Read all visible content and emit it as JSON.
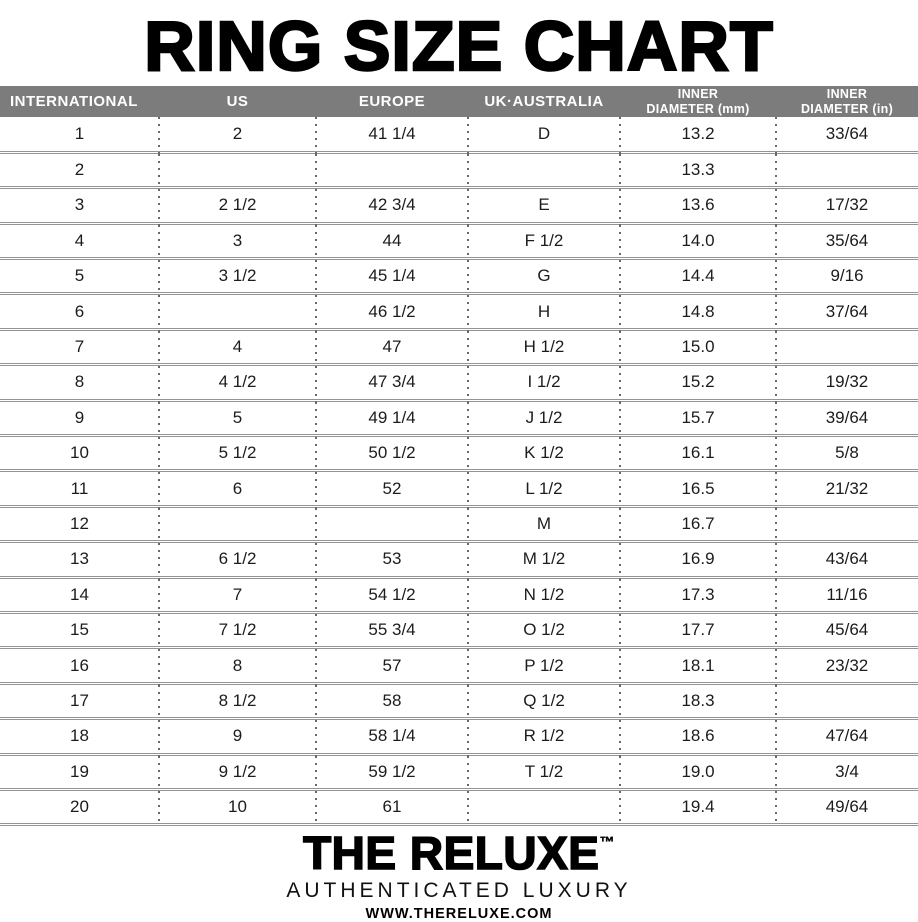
{
  "page": {
    "title": "RING SIZE CHART"
  },
  "table": {
    "column_keys": [
      "international",
      "us",
      "europe",
      "uk_australia",
      "inner_diameter_mm",
      "inner_diameter_in"
    ],
    "columns": {
      "international": {
        "label": "INTERNATIONAL"
      },
      "us": {
        "label": "US"
      },
      "europe": {
        "label": "EUROPE"
      },
      "uk_australia": {
        "label": "UK·AUSTRALIA"
      },
      "inner_diameter_mm": {
        "label_line1": "INNER",
        "label_line2": "DIAMETER (mm)"
      },
      "inner_diameter_in": {
        "label_line1": "INNER",
        "label_line2": "DIAMETER (in)"
      }
    },
    "rows": [
      {
        "international": "1",
        "us": "2",
        "europe": "41 1/4",
        "uk_australia": "D",
        "inner_diameter_mm": "13.2",
        "inner_diameter_in": "33/64"
      },
      {
        "international": "2",
        "us": "",
        "europe": "",
        "uk_australia": "",
        "inner_diameter_mm": "13.3",
        "inner_diameter_in": ""
      },
      {
        "international": "3",
        "us": "2 1/2",
        "europe": "42 3/4",
        "uk_australia": "E",
        "inner_diameter_mm": "13.6",
        "inner_diameter_in": "17/32"
      },
      {
        "international": "4",
        "us": "3",
        "europe": "44",
        "uk_australia": "F 1/2",
        "inner_diameter_mm": "14.0",
        "inner_diameter_in": "35/64"
      },
      {
        "international": "5",
        "us": "3 1/2",
        "europe": "45 1/4",
        "uk_australia": "G",
        "inner_diameter_mm": "14.4",
        "inner_diameter_in": "9/16"
      },
      {
        "international": "6",
        "us": "",
        "europe": "46 1/2",
        "uk_australia": "H",
        "inner_diameter_mm": "14.8",
        "inner_diameter_in": "37/64"
      },
      {
        "international": "7",
        "us": "4",
        "europe": "47",
        "uk_australia": "H 1/2",
        "inner_diameter_mm": "15.0",
        "inner_diameter_in": ""
      },
      {
        "international": "8",
        "us": "4 1/2",
        "europe": "47 3/4",
        "uk_australia": "I 1/2",
        "inner_diameter_mm": "15.2",
        "inner_diameter_in": "19/32"
      },
      {
        "international": "9",
        "us": "5",
        "europe": "49 1/4",
        "uk_australia": "J 1/2",
        "inner_diameter_mm": "15.7",
        "inner_diameter_in": "39/64"
      },
      {
        "international": "10",
        "us": "5 1/2",
        "europe": "50 1/2",
        "uk_australia": "K 1/2",
        "inner_diameter_mm": "16.1",
        "inner_diameter_in": "5/8"
      },
      {
        "international": "11",
        "us": "6",
        "europe": "52",
        "uk_australia": "L 1/2",
        "inner_diameter_mm": "16.5",
        "inner_diameter_in": "21/32"
      },
      {
        "international": "12",
        "us": "",
        "europe": "",
        "uk_australia": "M",
        "inner_diameter_mm": "16.7",
        "inner_diameter_in": ""
      },
      {
        "international": "13",
        "us": "6 1/2",
        "europe": "53",
        "uk_australia": "M 1/2",
        "inner_diameter_mm": "16.9",
        "inner_diameter_in": "43/64"
      },
      {
        "international": "14",
        "us": "7",
        "europe": "54 1/2",
        "uk_australia": "N 1/2",
        "inner_diameter_mm": "17.3",
        "inner_diameter_in": "11/16"
      },
      {
        "international": "15",
        "us": "7 1/2",
        "europe": "55 3/4",
        "uk_australia": "O 1/2",
        "inner_diameter_mm": "17.7",
        "inner_diameter_in": "45/64"
      },
      {
        "international": "16",
        "us": "8",
        "europe": "57",
        "uk_australia": "P 1/2",
        "inner_diameter_mm": "18.1",
        "inner_diameter_in": "23/32"
      },
      {
        "international": "17",
        "us": "8 1/2",
        "europe": "58",
        "uk_australia": "Q 1/2",
        "inner_diameter_mm": "18.3",
        "inner_diameter_in": ""
      },
      {
        "international": "18",
        "us": "9",
        "europe": "58 1/4",
        "uk_australia": "R 1/2",
        "inner_diameter_mm": "18.6",
        "inner_diameter_in": "47/64"
      },
      {
        "international": "19",
        "us": "9 1/2",
        "europe": "59 1/2",
        "uk_australia": "T 1/2",
        "inner_diameter_mm": "19.0",
        "inner_diameter_in": "3/4"
      },
      {
        "international": "20",
        "us": "10",
        "europe": "61",
        "uk_australia": "",
        "inner_diameter_mm": "19.4",
        "inner_diameter_in": "49/64"
      }
    ]
  },
  "footer": {
    "brand": "THE RELUXE",
    "trademark": "™",
    "tagline": "AUTHENTICATED LUXURY",
    "website": "WWW.THERELUXE.COM"
  },
  "colors": {
    "header_bg": "#7c7c7c",
    "header_text": "#ffffff",
    "row_line": "#949494",
    "dotted_line": "#696969",
    "text": "#1c1c1c",
    "background": "#ffffff"
  }
}
